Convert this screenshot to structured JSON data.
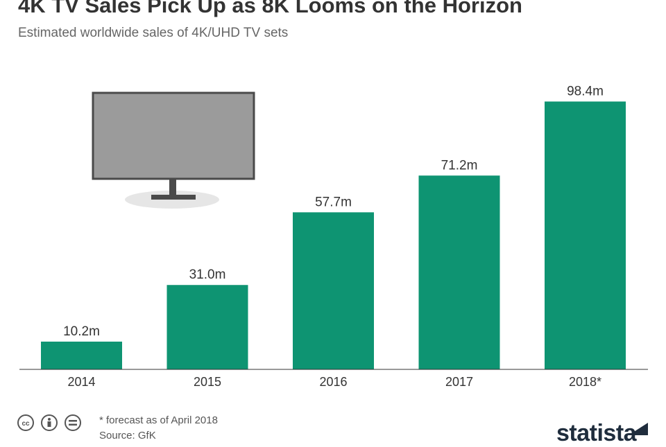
{
  "header": {
    "title": "4K TV Sales Pick Up as 8K Looms on the Horizon",
    "subtitle": "Estimated worldwide sales of 4K/UHD TV sets"
  },
  "chart_data": {
    "type": "bar",
    "categories": [
      "2014",
      "2015",
      "2016",
      "2017",
      "2018*"
    ],
    "values": [
      10.2,
      31.0,
      57.7,
      71.2,
      98.4
    ],
    "value_labels": [
      "10.2m",
      "31.0m",
      "57.7m",
      "71.2m",
      "98.4m"
    ],
    "ylim": [
      0,
      100
    ],
    "bar_color": "#0e9472",
    "grid": false
  },
  "footer": {
    "footnote": "* forecast as of April 2018",
    "source": "Source: GfK",
    "brand": "statista",
    "icons": [
      "cc-icon",
      "by-icon",
      "nd-icon"
    ]
  },
  "colors": {
    "title": "#333333",
    "subtitle": "#666666",
    "bar": "#0e9472",
    "tv_screen": "#9b9b9b",
    "tv_frame": "#4a4a4a"
  }
}
